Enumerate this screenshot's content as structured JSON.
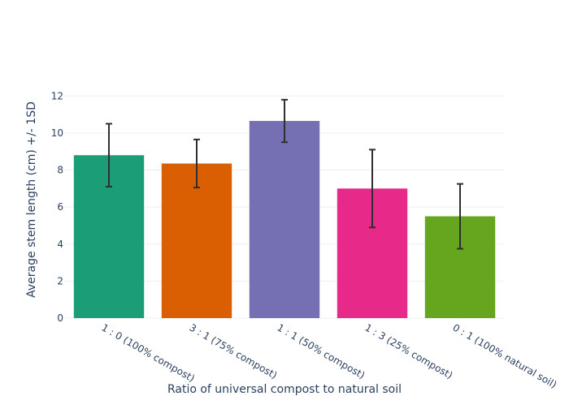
{
  "chart_data": {
    "type": "bar",
    "title": "",
    "xlabel": "Ratio of universal compost to natural soil",
    "ylabel": "Average stem length (cm) +/- 1SD",
    "ylim": [
      0,
      12.8
    ],
    "yticks": [
      "0",
      "2",
      "4",
      "6",
      "8",
      "10",
      "12"
    ],
    "grid": true,
    "legend": "none",
    "categories": [
      "1 : 0 (100% compost)",
      "3 : 1 (75% compost)",
      "1 : 1 (50% compost)",
      "1 : 3 (25% compost)",
      "0 : 1 (100% natural soil)"
    ],
    "values": [
      8.8,
      8.35,
      10.65,
      7.0,
      5.5
    ],
    "error": [
      1.7,
      1.3,
      1.15,
      2.1,
      1.75
    ],
    "colors": [
      "#1b9e77",
      "#d95f02",
      "#7570b3",
      "#e7298a",
      "#66a61e"
    ]
  }
}
